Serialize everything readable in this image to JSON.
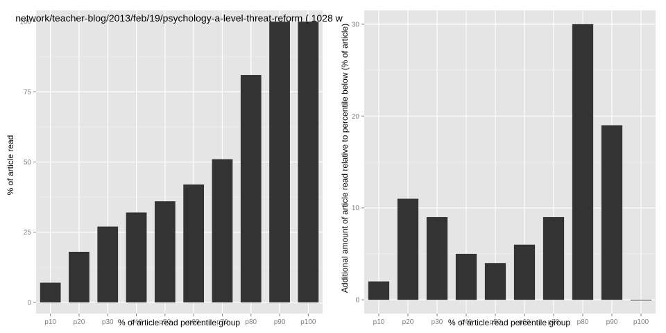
{
  "colors": {
    "panel_background": "#e5e5e5",
    "grid_major": "#ffffff",
    "grid_minor": "#f2f2f2",
    "bar_fill": "#333333",
    "tick_text": "#7f7f7f",
    "text": "#000000"
  },
  "chart_data": [
    {
      "type": "bar",
      "title": "network/teacher-blog/2013/feb/19/psychology-a-level-threat-reform ( 1028 w",
      "xlabel": "% of article read percentile group",
      "ylabel": "% of article read",
      "categories": [
        "p10",
        "p20",
        "p30",
        "p40",
        "p50",
        "p60",
        "p70",
        "p80",
        "p90",
        "p100"
      ],
      "values": [
        7,
        18,
        27,
        32,
        36,
        42,
        51,
        81,
        100,
        100
      ],
      "ylim": [
        -4,
        104
      ],
      "yticks": [
        0,
        25,
        50,
        75,
        100
      ],
      "ytick_labels": [
        "0",
        "25",
        "50",
        "75",
        "100"
      ],
      "grid": true,
      "legend": "none"
    },
    {
      "type": "bar",
      "title": "",
      "xlabel": "% of article read percentile group",
      "ylabel": "Additional amount of article read relative to percentile below (% of article)",
      "categories": [
        "p10",
        "p20",
        "p30",
        "p40",
        "p50",
        "p60",
        "p70",
        "p80",
        "p90",
        "p100"
      ],
      "values": [
        2,
        11,
        9,
        5,
        4,
        6,
        9,
        30,
        19,
        0
      ],
      "ylim": [
        -1.5,
        31.5
      ],
      "yticks": [
        0,
        10,
        20,
        30
      ],
      "ytick_labels": [
        "0",
        "10",
        "20",
        "30"
      ],
      "grid": true,
      "legend": "none"
    }
  ]
}
